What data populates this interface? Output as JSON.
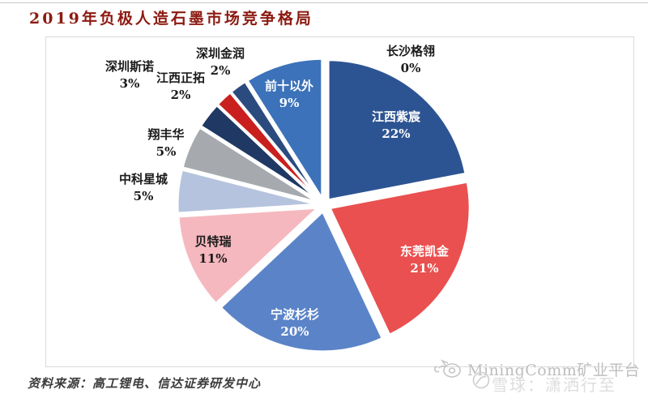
{
  "page": {
    "title": "2019年负极人造石墨市场竞争格局",
    "title_color": "#8c1a11",
    "source_note": "资料来源：高工锂电、信达证券研发中心"
  },
  "watermark": {
    "brand": "MiningComm矿业平台",
    "sub": "雪球：潇洒行至",
    "animal_icon": "pig-mascot-icon",
    "circle_icon": "xueqiu-logo-icon"
  },
  "chart_data": {
    "type": "pie",
    "title": "2019年负极人造石墨市场竞争格局",
    "unit": "%",
    "start_angle_deg": 0,
    "clockwise": true,
    "legend": "none",
    "slices": [
      {
        "key": "changsha-geling",
        "label": "长沙格翎",
        "value": 0,
        "color": "#5b84c8",
        "label_inside": false,
        "label_color": "#1a1a1a"
      },
      {
        "key": "jiangxi-zichen",
        "label": "江西紫宸",
        "value": 22,
        "color": "#2d5492",
        "label_inside": true,
        "label_color": "#ffffff"
      },
      {
        "key": "dongguan-kaijin",
        "label": "东莞凯金",
        "value": 21,
        "color": "#e9504f",
        "label_inside": true,
        "label_color": "#ffffff"
      },
      {
        "key": "ningbo-shanshan",
        "label": "宁波杉杉",
        "value": 20,
        "color": "#5b84c8",
        "label_inside": true,
        "label_color": "#ffffff"
      },
      {
        "key": "beiterui",
        "label": "贝特瑞",
        "value": 11,
        "color": "#f5b8bf",
        "label_inside": true,
        "label_color": "#1a1a1a"
      },
      {
        "key": "zhongke-xingcheng",
        "label": "中科星城",
        "value": 5,
        "color": "#b5c3de",
        "label_inside": false,
        "label_color": "#1a1a1a"
      },
      {
        "key": "xiangfenghua",
        "label": "翔丰华",
        "value": 5,
        "color": "#a6a9ae",
        "label_inside": false,
        "label_color": "#1a1a1a"
      },
      {
        "key": "shenzhen-sinuo",
        "label": "深圳斯诺",
        "value": 3,
        "color": "#1f3864",
        "label_inside": false,
        "label_color": "#1a1a1a"
      },
      {
        "key": "jiangxi-zhengtuo",
        "label": "江西正拓",
        "value": 2,
        "color": "#c9201f",
        "label_inside": false,
        "label_color": "#1a1a1a"
      },
      {
        "key": "shenzhen-jinrun",
        "label": "深圳金润",
        "value": 2,
        "color": "#2b4b7e",
        "label_inside": false,
        "label_color": "#1a1a1a"
      },
      {
        "key": "qianshi-yiwai",
        "label": "前十以外",
        "value": 9,
        "color": "#3b72ba",
        "label_inside": true,
        "label_color": "#ffffff"
      }
    ]
  }
}
